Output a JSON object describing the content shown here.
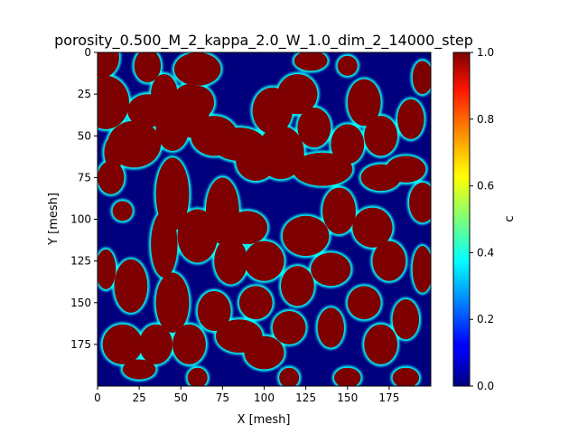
{
  "chart_data": {
    "type": "heatmap",
    "title": "porosity_0.500_M_2_kappa_2.0_W_1.0_dim_2_14000_step",
    "xlabel": "X [mesh]",
    "ylabel": "Y [mesh]",
    "xlim": [
      0,
      200
    ],
    "ylim": [
      200,
      0
    ],
    "xticks": [
      0,
      25,
      50,
      75,
      100,
      125,
      150,
      175
    ],
    "yticks": [
      0,
      25,
      50,
      75,
      100,
      125,
      150,
      175
    ],
    "colorbar": {
      "label": "c",
      "range": [
        0.0,
        1.0
      ],
      "ticks": [
        "0.0",
        "0.2",
        "0.4",
        "0.6",
        "0.8",
        "1.0"
      ],
      "colormap": "jet"
    },
    "field_description_values": {
      "phase_low": 0.0,
      "phase_high": 1.0,
      "porosity": 0.5
    },
    "grid": false
  },
  "colors": {
    "phase_high": "#7f0000",
    "phase_low": "#00007f",
    "interface": "#00ffff"
  }
}
